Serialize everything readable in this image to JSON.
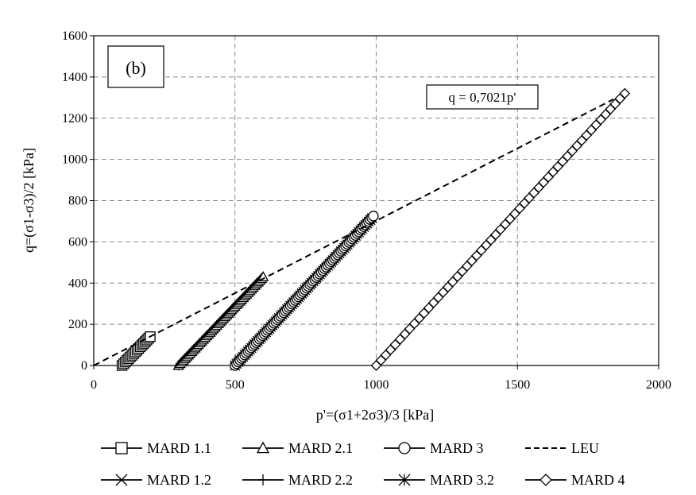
{
  "chart_data": {
    "type": "scatter",
    "panel_label": "(b)",
    "xlabel": "p'=(σ1+2σ3)/3 [kPa]",
    "ylabel": "q=(σ1-σ3)/2 [kPa]",
    "xlim": [
      0,
      2000
    ],
    "ylim": [
      0,
      1600
    ],
    "x_ticks": [
      0,
      500,
      1000,
      1500,
      2000
    ],
    "y_ticks": [
      0,
      200,
      400,
      600,
      800,
      1000,
      1200,
      1400,
      1600
    ],
    "grid": true,
    "legend_position": "bottom",
    "annotation": "q = 0,7021p'",
    "series": [
      {
        "name": "MARD 1.1",
        "marker": "square",
        "x": [
          100,
          200
        ],
        "y": [
          0,
          140
        ]
      },
      {
        "name": "MARD 2.1",
        "marker": "triangle",
        "x": [
          300,
          600
        ],
        "y": [
          0,
          430
        ]
      },
      {
        "name": "MARD 3",
        "marker": "circle",
        "x": [
          500,
          990
        ],
        "y": [
          0,
          725
        ]
      },
      {
        "name": "LEU",
        "marker": "dashed-line",
        "x": [
          0,
          1840
        ],
        "y": [
          0,
          1292
        ]
      },
      {
        "name": "MARD 1.2",
        "marker": "x",
        "x": [
          100,
          195
        ],
        "y": [
          0,
          135
        ]
      },
      {
        "name": "MARD 2.2",
        "marker": "plus",
        "x": [
          300,
          595
        ],
        "y": [
          0,
          425
        ]
      },
      {
        "name": "MARD 3.2",
        "marker": "asterisk",
        "x": [
          500,
          985
        ],
        "y": [
          0,
          715
        ]
      },
      {
        "name": "MARD 4",
        "marker": "diamond",
        "x": [
          1000,
          1880
        ],
        "y": [
          0,
          1320
        ]
      }
    ]
  }
}
